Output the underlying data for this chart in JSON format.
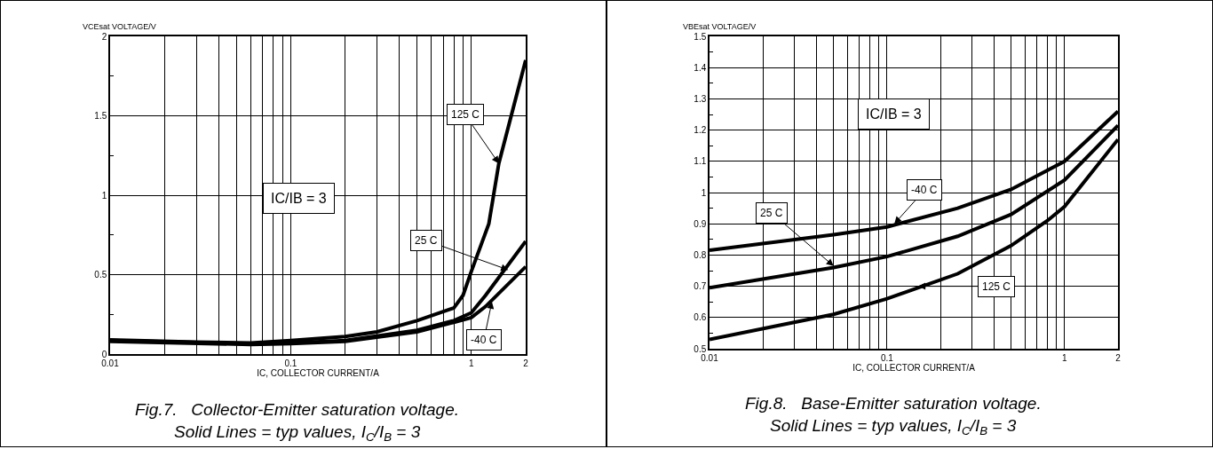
{
  "chart_data": [
    {
      "type": "line",
      "title": "Fig.7.   Collector-Emitter saturation voltage.",
      "subtitle": "Solid Lines = typ values, I$_{C}$/I$_{B}$ = 3",
      "xlabel": "IC, COLLECTOR CURRENT/A",
      "ylabel": "VCEsat VOLTAGE/V",
      "log": "x",
      "grid": true,
      "line_style": "solid",
      "marker": "none",
      "xlim": [
        0.01,
        2
      ],
      "xticks": [
        0.01,
        {
          "value": 0.02,
          "label": null
        },
        {
          "value": 0.03,
          "label": null
        },
        {
          "value": 0.04,
          "label": null
        },
        {
          "value": 0.05,
          "label": null
        },
        {
          "value": 0.06,
          "label": null
        },
        {
          "value": 0.07,
          "label": null
        },
        {
          "value": 0.08,
          "label": null
        },
        {
          "value": 0.09,
          "label": null
        },
        0.1,
        {
          "value": 0.2,
          "label": null
        },
        {
          "value": 0.3,
          "label": null
        },
        {
          "value": 0.4,
          "label": null
        },
        {
          "value": 0.5,
          "label": null
        },
        {
          "value": 0.6,
          "label": null
        },
        {
          "value": 0.7,
          "label": null
        },
        {
          "value": 0.8,
          "label": null
        },
        {
          "value": 0.9,
          "label": null
        },
        1,
        2
      ],
      "ylim": [
        0,
        2
      ],
      "yticks": [
        0,
        {
          "value": 0.25,
          "label": null
        },
        0.5,
        {
          "value": 0.75,
          "label": null
        },
        1,
        {
          "value": 1.25,
          "label": null
        },
        1.5,
        {
          "value": 1.75,
          "label": null
        },
        2
      ],
      "series": [
        {
          "color": "#000000",
          "x": [
            0.01,
            0.03,
            0.06,
            0.1,
            0.2,
            0.3,
            0.5,
            0.8,
            0.9,
            1,
            1.25,
            1.42,
            2
          ],
          "values": [
            0.09,
            0.075,
            0.07,
            0.085,
            0.11,
            0.14,
            0.21,
            0.29,
            0.37,
            0.52,
            0.82,
            1.2,
            1.85
          ]
        },
        {
          "color": "#000000",
          "x": [
            0.01,
            0.06,
            0.1,
            0.2,
            0.5,
            0.8,
            1,
            1.2,
            2
          ],
          "values": [
            0.085,
            0.065,
            0.07,
            0.085,
            0.15,
            0.21,
            0.26,
            0.37,
            0.71
          ]
        },
        {
          "color": "#000000",
          "x": [
            0.01,
            0.06,
            0.1,
            0.2,
            0.5,
            0.8,
            1,
            1.2,
            2
          ],
          "values": [
            0.08,
            0.06,
            0.065,
            0.08,
            0.14,
            0.2,
            0.23,
            0.3,
            0.55
          ]
        }
      ],
      "annotations": [
        {
          "text": "125 C",
          "x": 1.42,
          "y": 1.2
        },
        {
          "text": "25 C",
          "x": 1.6,
          "y": 0.53
        },
        {
          "text": "-40 C",
          "x": 1.3,
          "y": 0.33
        },
        "IC/IB = 3"
      ]
    },
    {
      "type": "line",
      "title": "Fig.8.   Base-Emitter saturation voltage.",
      "subtitle": "Solid Lines = typ values, I$_{C}$/I$_{B}$ = 3",
      "xlabel": "IC, COLLECTOR CURRENT/A",
      "ylabel": "VBEsat VOLTAGE/V",
      "log": "x",
      "grid": true,
      "line_style": "solid",
      "marker": "none",
      "xlim": [
        0.01,
        2
      ],
      "xticks": [
        0.01,
        {
          "value": 0.02,
          "label": null
        },
        {
          "value": 0.03,
          "label": null
        },
        {
          "value": 0.04,
          "label": null
        },
        {
          "value": 0.05,
          "label": null
        },
        {
          "value": 0.06,
          "label": null
        },
        {
          "value": 0.07,
          "label": null
        },
        {
          "value": 0.08,
          "label": null
        },
        {
          "value": 0.09,
          "label": null
        },
        0.1,
        {
          "value": 0.2,
          "label": null
        },
        {
          "value": 0.3,
          "label": null
        },
        {
          "value": 0.4,
          "label": null
        },
        {
          "value": 0.5,
          "label": null
        },
        {
          "value": 0.6,
          "label": null
        },
        {
          "value": 0.7,
          "label": null
        },
        {
          "value": 0.8,
          "label": null
        },
        {
          "value": 0.9,
          "label": null
        },
        1,
        2
      ],
      "ylim": [
        0.5,
        1.5
      ],
      "yticks": [
        0.5,
        {
          "value": 0.55,
          "label": null
        },
        0.6,
        {
          "value": 0.65,
          "label": null
        },
        0.7,
        {
          "value": 0.75,
          "label": null
        },
        0.8,
        {
          "value": 0.85,
          "label": null
        },
        0.9,
        {
          "value": 0.95,
          "label": null
        },
        1,
        {
          "value": 1.05,
          "label": null
        },
        1.1,
        {
          "value": 1.15,
          "label": null
        },
        1.2,
        {
          "value": 1.25,
          "label": null
        },
        1.3,
        {
          "value": 1.35,
          "label": null
        },
        1.4,
        {
          "value": 1.45,
          "label": null
        },
        1.5
      ],
      "series": [
        {
          "color": "#000000",
          "x": [
            0.01,
            0.05,
            0.1,
            0.25,
            0.5,
            1,
            2
          ],
          "values": [
            0.815,
            0.865,
            0.89,
            0.95,
            1.01,
            1.1,
            1.26
          ]
        },
        {
          "color": "#000000",
          "x": [
            0.01,
            0.05,
            0.1,
            0.25,
            0.5,
            1,
            2
          ],
          "values": [
            0.695,
            0.76,
            0.795,
            0.86,
            0.93,
            1.04,
            1.215
          ]
        },
        {
          "color": "#000000",
          "x": [
            0.01,
            0.05,
            0.1,
            0.25,
            0.5,
            0.8,
            1,
            2
          ],
          "values": [
            0.53,
            0.61,
            0.66,
            0.74,
            0.83,
            0.91,
            0.955,
            1.17
          ]
        }
      ],
      "annotations": [
        {
          "text": "-40 C",
          "x": 0.11,
          "y": 0.9
        },
        {
          "text": "25 C",
          "x": 0.05,
          "y": 0.765
        },
        {
          "text": "125 C",
          "x": 0.15,
          "y": 0.7
        },
        "IC/IB = 3"
      ]
    }
  ]
}
